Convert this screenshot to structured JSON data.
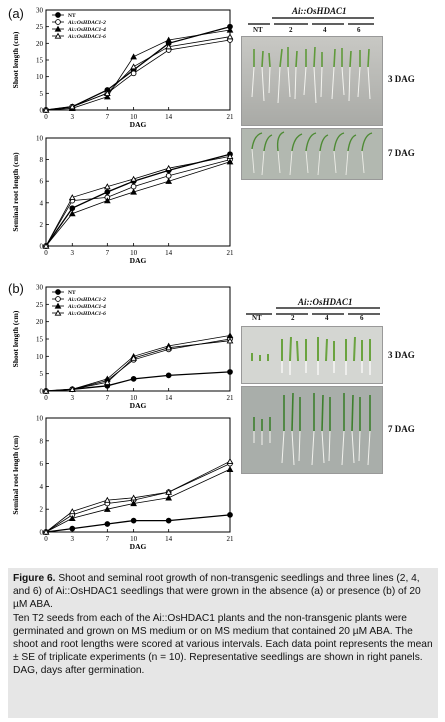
{
  "panels": {
    "a": "(a)",
    "b": "(b)"
  },
  "photo_text": {
    "header": "Ai::OsHDAC1",
    "columns": [
      "NT",
      "2",
      "4",
      "6"
    ],
    "row_labels_a": [
      "3 DAG",
      "7 DAG"
    ],
    "row_labels_b": [
      "3 DAG",
      "7 DAG"
    ]
  },
  "charts": [
    {
      "id": "a-shoot",
      "type": "line",
      "ylabel": "Shoot length (cm)",
      "xlabel": "DAG",
      "x": [
        0,
        3,
        7,
        10,
        14,
        21
      ],
      "xticks": [
        "0",
        "3",
        "7",
        "10",
        "14",
        "21"
      ],
      "yticks": [
        "0",
        "5",
        "10",
        "15",
        "20",
        "25",
        "30"
      ],
      "ylim": [
        0,
        30
      ],
      "legend": [
        "NT",
        "Ai::OsHDAC1-2",
        "Ai::OsHDAC1-4",
        "Ai::OsHDAC1-6"
      ],
      "series": [
        {
          "name": "NT",
          "values": [
            0,
            1,
            6,
            12,
            20,
            25
          ]
        },
        {
          "name": "Ai::OsHDAC1-2",
          "values": [
            0,
            1,
            5,
            11,
            18,
            21
          ]
        },
        {
          "name": "Ai::OsHDAC1-4",
          "values": [
            0,
            0.5,
            4,
            16,
            21,
            24
          ]
        },
        {
          "name": "Ai::OsHDAC1-6",
          "values": [
            0,
            1,
            5,
            13,
            19,
            22
          ]
        }
      ]
    },
    {
      "id": "a-root",
      "type": "line",
      "ylabel": "Seminal root length (cm)",
      "xlabel": "DAG",
      "x": [
        0,
        3,
        7,
        10,
        14,
        21
      ],
      "xticks": [
        "0",
        "3",
        "7",
        "10",
        "14",
        "21"
      ],
      "yticks": [
        "0",
        "2",
        "4",
        "6",
        "8",
        "10"
      ],
      "ylim": [
        0,
        10
      ],
      "legend": [],
      "series": [
        {
          "name": "NT",
          "values": [
            0,
            3.5,
            5,
            6,
            7,
            8.5
          ]
        },
        {
          "name": "Ai::OsHDAC1-2",
          "values": [
            0,
            4.2,
            4.5,
            5.5,
            6.5,
            8
          ]
        },
        {
          "name": "Ai::OsHDAC1-4",
          "values": [
            0,
            3,
            4.2,
            5,
            6,
            7.8
          ]
        },
        {
          "name": "Ai::OsHDAC1-6",
          "values": [
            0,
            4.5,
            5.5,
            6.2,
            7.2,
            8.3
          ]
        }
      ]
    },
    {
      "id": "b-shoot",
      "type": "line",
      "ylabel": "Shoot length (cm)",
      "xlabel": "DAG",
      "x": [
        0,
        3,
        7,
        10,
        14,
        21
      ],
      "xticks": [
        "0",
        "3",
        "7",
        "10",
        "14",
        "21"
      ],
      "yticks": [
        "0",
        "5",
        "10",
        "15",
        "20",
        "25",
        "30"
      ],
      "ylim": [
        0,
        30
      ],
      "legend": [
        "NT",
        "Ai::OsHDAC1-2",
        "Ai::OsHDAC1-4",
        "Ai::OsHDAC1-6"
      ],
      "series": [
        {
          "name": "NT",
          "values": [
            0,
            0.5,
            1.5,
            3.5,
            4.5,
            5.5
          ]
        },
        {
          "name": "Ai::OsHDAC1-2",
          "values": [
            0,
            0.5,
            3,
            9,
            12,
            15
          ]
        },
        {
          "name": "Ai::OsHDAC1-4",
          "values": [
            0,
            0.5,
            3.5,
            10,
            13,
            16
          ]
        },
        {
          "name": "Ai::OsHDAC1-6",
          "values": [
            0,
            0.5,
            2.5,
            9.5,
            12.5,
            14.5
          ]
        }
      ]
    },
    {
      "id": "b-root",
      "type": "line",
      "ylabel": "Seminal root length (cm)",
      "xlabel": "DAG",
      "x": [
        0,
        3,
        7,
        10,
        14,
        21
      ],
      "xticks": [
        "0",
        "3",
        "7",
        "10",
        "14",
        "21"
      ],
      "yticks": [
        "0",
        "2",
        "4",
        "6",
        "8",
        "10"
      ],
      "ylim": [
        0,
        10
      ],
      "legend": [],
      "series": [
        {
          "name": "NT",
          "values": [
            0,
            0.3,
            0.7,
            1,
            1,
            1.5
          ]
        },
        {
          "name": "Ai::OsHDAC1-2",
          "values": [
            0,
            1.5,
            2.5,
            2.8,
            3.5,
            6
          ]
        },
        {
          "name": "Ai::OsHDAC1-4",
          "values": [
            0,
            1.2,
            2,
            2.5,
            3,
            5.5
          ]
        },
        {
          "name": "Ai::OsHDAC1-6",
          "values": [
            0,
            1.8,
            2.8,
            3,
            3.5,
            6.2
          ]
        }
      ]
    }
  ],
  "caption": {
    "figure_label": "Figure 6.",
    "title_text": "Shoot and seminal root growth of non-transgenic seedlings and three lines (2, 4, and 6) of Ai::OsHDAC1 seedlings that were grown in the absence (a) or presence (b) of 20 µM ABA.",
    "body_text": "Ten T2 seeds from each of the Ai::OsHDAC1 plants and the non-transgenic plants were germinated and grown on MS medium or on MS medium that contained 20 µM ABA. The shoot and root lengths were scored at various intervals. Each data point represents the mean ± SE of triplicate experiments (n = 10). Representative seedlings are shown in right panels. DAG, days after germination."
  }
}
